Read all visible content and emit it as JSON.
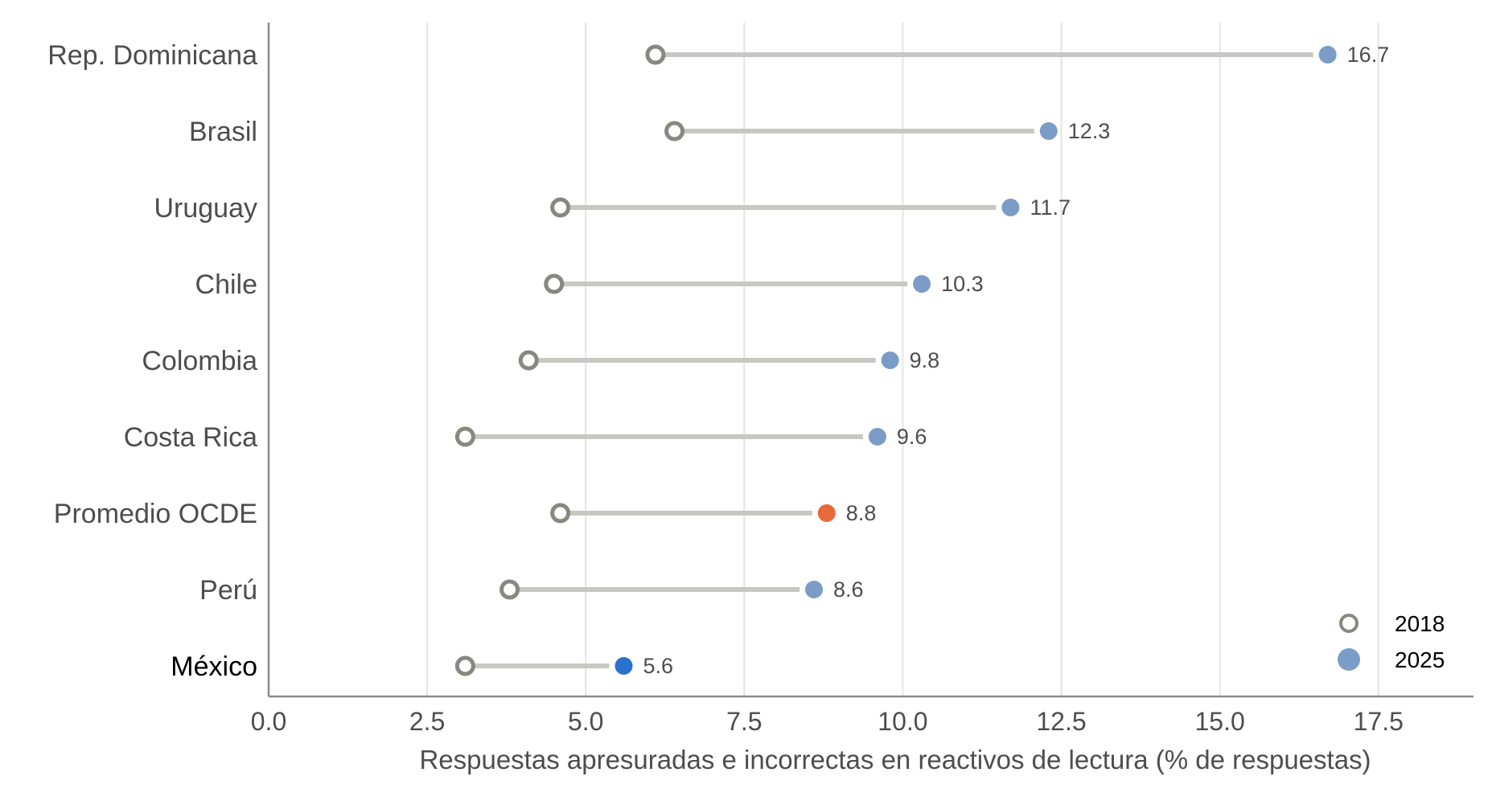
{
  "chart_data": {
    "type": "dumbbell",
    "xlabel": "Respuestas apresuradas e incorrectas en reactivos de lectura (% de respuestas)",
    "xlim": [
      0,
      19
    ],
    "xticks": [
      "0.0",
      "2.5",
      "5.0",
      "7.5",
      "10.0",
      "12.5",
      "15.0",
      "17.5"
    ],
    "grid": "vertical",
    "legend_position": "bottom-right",
    "categories": [
      "Rep. Dominicana",
      "Brasil",
      "Uruguay",
      "Chile",
      "Colombia",
      "Costa Rica",
      "Promedio OCDE",
      "Perú",
      "México"
    ],
    "series": [
      {
        "name": "2018",
        "marker": "hollow-circle",
        "color": "#888880",
        "values": [
          6.1,
          6.4,
          4.6,
          4.5,
          4.1,
          3.1,
          4.6,
          3.8,
          3.1
        ]
      },
      {
        "name": "2025",
        "marker": "filled-circle",
        "color": "#7a9cc6",
        "values": [
          16.7,
          12.3,
          11.7,
          10.3,
          9.8,
          9.6,
          8.8,
          8.6,
          5.6
        ],
        "labels": [
          "16.7",
          "12.3",
          "11.7",
          "10.3",
          "9.8",
          "9.6",
          "8.8",
          "8.6",
          "5.6"
        ]
      }
    ],
    "highlight": {
      "Promedio OCDE": "#e8693a",
      "México": "#2a72d0"
    },
    "connector_color": "#c8c8c2",
    "grid_color": "#e4e4e4",
    "axis_color": "#8a8a8a"
  }
}
